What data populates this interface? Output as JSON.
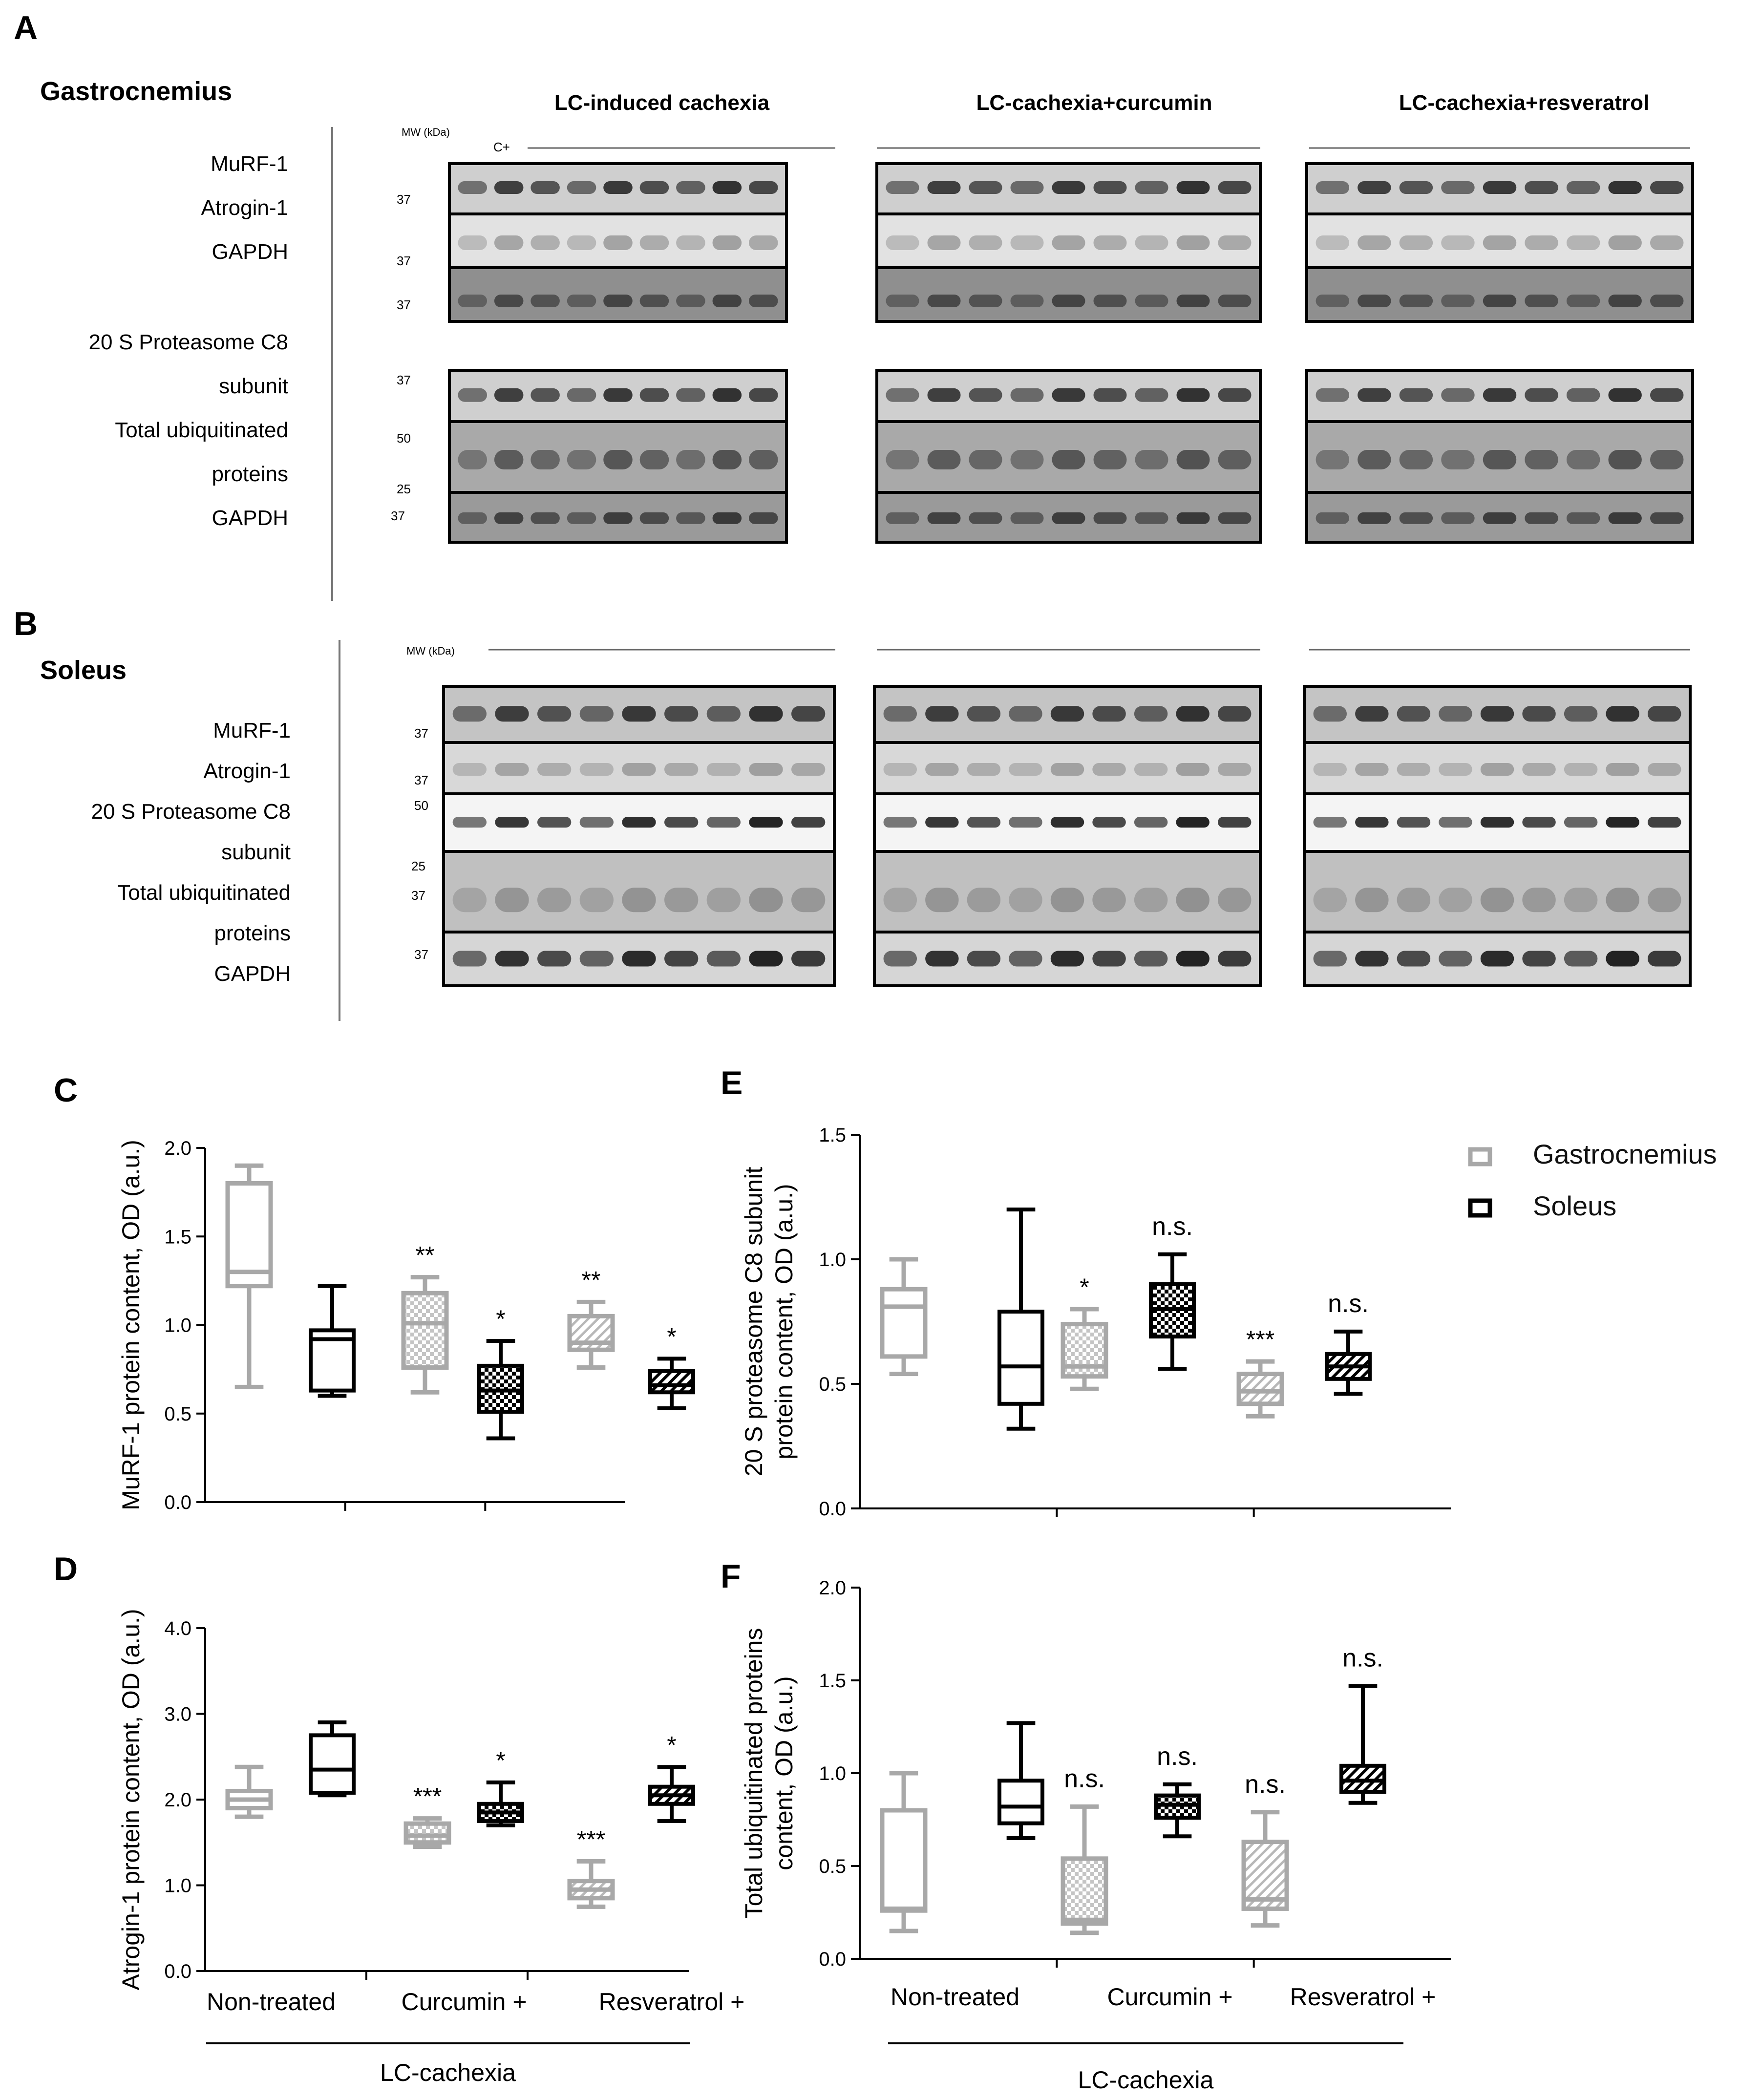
{
  "panel_letters": [
    "A",
    "B",
    "C",
    "D",
    "E",
    "F"
  ],
  "section_a": {
    "title": "Gastrocnemius",
    "group_titles": [
      "LC-induced cachexia",
      "LC-cachexia+curcumin",
      "LC-cachexia+resveratrol"
    ],
    "mw_label": "MW (kDa)",
    "control_label": "C+",
    "row_labels": [
      "MuRF-1",
      "Atrogin-1",
      "GAPDH",
      "20 S Proteasome C8",
      "subunit",
      "Total ubiquitinated",
      "proteins",
      "GAPDH"
    ],
    "mw_markers": [
      "37",
      "37",
      "37",
      "37",
      "50",
      "25",
      "37"
    ]
  },
  "section_b": {
    "title": "Soleus",
    "mw_label": "MW (kDa)",
    "row_labels": [
      "MuRF-1",
      "Atrogin-1",
      "20 S Proteasome C8",
      "subunit",
      "Total ubiquitinated",
      "proteins",
      "GAPDH"
    ],
    "mw_markers": [
      "37",
      "37",
      "50",
      "25",
      "37",
      "37"
    ]
  },
  "legend": {
    "items": [
      "Gastrocnemius",
      "Soleus"
    ],
    "placement": "top-right of panel E"
  },
  "colors": {
    "gastrocnemius": "#a8a8a8",
    "soleus": "#000000",
    "axis": "#000000"
  },
  "chart_data": [
    {
      "panel": "C",
      "type": "box",
      "ylabel": "MuRF-1 protein content, OD (a.u.)",
      "ylim": [
        0,
        2.0
      ],
      "yticks": [
        "0.0",
        "0.5",
        "1.0",
        "1.5",
        "2.0"
      ],
      "categories": [
        "Non-treated",
        "Curcumin +",
        "Resveratrol +"
      ],
      "group_label": "LC-cachexia",
      "series": [
        {
          "name": "Gastrocnemius",
          "boxes": [
            {
              "min": 0.65,
              "q1": 1.22,
              "median": 1.3,
              "q3": 1.8,
              "max": 1.9,
              "pattern": "none",
              "sig": ""
            },
            {
              "min": 0.62,
              "q1": 0.76,
              "median": 1.01,
              "q3": 1.18,
              "max": 1.27,
              "pattern": "check",
              "sig": "**"
            },
            {
              "min": 0.76,
              "q1": 0.86,
              "median": 0.9,
              "q3": 1.05,
              "max": 1.13,
              "pattern": "hatch",
              "sig": "**"
            }
          ]
        },
        {
          "name": "Soleus",
          "boxes": [
            {
              "min": 0.6,
              "q1": 0.63,
              "median": 0.92,
              "q3": 0.97,
              "max": 1.22,
              "pattern": "none",
              "sig": ""
            },
            {
              "min": 0.36,
              "q1": 0.51,
              "median": 0.63,
              "q3": 0.77,
              "max": 0.91,
              "pattern": "check",
              "sig": "*"
            },
            {
              "min": 0.53,
              "q1": 0.62,
              "median": 0.66,
              "q3": 0.74,
              "max": 0.81,
              "pattern": "hatch",
              "sig": "*"
            }
          ]
        }
      ]
    },
    {
      "panel": "D",
      "type": "box",
      "ylabel": "Atrogin-1 protein content, OD (a.u.)",
      "ylim": [
        0,
        4.0
      ],
      "yticks": [
        "0.0",
        "1.0",
        "2.0",
        "3.0",
        "4.0"
      ],
      "categories": [
        "Non-treated",
        "Curcumin +",
        "Resveratrol +"
      ],
      "group_label": "LC-cachexia",
      "series": [
        {
          "name": "Gastrocnemius",
          "boxes": [
            {
              "min": 1.8,
              "q1": 1.9,
              "median": 2.0,
              "q3": 2.1,
              "max": 2.38,
              "pattern": "none",
              "sig": ""
            },
            {
              "min": 1.45,
              "q1": 1.5,
              "median": 1.58,
              "q3": 1.72,
              "max": 1.78,
              "pattern": "check",
              "sig": "***"
            },
            {
              "min": 0.75,
              "q1": 0.85,
              "median": 0.95,
              "q3": 1.05,
              "max": 1.28,
              "pattern": "hatch",
              "sig": "***"
            }
          ]
        },
        {
          "name": "Soleus",
          "boxes": [
            {
              "min": 2.05,
              "q1": 2.08,
              "median": 2.35,
              "q3": 2.75,
              "max": 2.9,
              "pattern": "none",
              "sig": ""
            },
            {
              "min": 1.7,
              "q1": 1.75,
              "median": 1.85,
              "q3": 1.95,
              "max": 2.2,
              "pattern": "check",
              "sig": "*"
            },
            {
              "min": 1.75,
              "q1": 1.95,
              "median": 2.05,
              "q3": 2.15,
              "max": 2.38,
              "pattern": "hatch",
              "sig": "*"
            }
          ]
        }
      ]
    },
    {
      "panel": "E",
      "type": "box",
      "ylabel_lines": [
        "20 S proteasome C8 subunit",
        "protein content, OD (a.u.)"
      ],
      "ylim": [
        0,
        1.5
      ],
      "yticks": [
        "0.0",
        "0.5",
        "1.0",
        "1.5"
      ],
      "categories": [
        "Non-treated",
        "Curcumin +",
        "Resveratrol +"
      ],
      "group_label": "LC-cachexia",
      "series": [
        {
          "name": "Gastrocnemius",
          "boxes": [
            {
              "min": 0.54,
              "q1": 0.61,
              "median": 0.81,
              "q3": 0.88,
              "max": 1.0,
              "pattern": "none",
              "sig": ""
            },
            {
              "min": 0.48,
              "q1": 0.53,
              "median": 0.57,
              "q3": 0.74,
              "max": 0.8,
              "pattern": "check",
              "sig": "*"
            },
            {
              "min": 0.37,
              "q1": 0.42,
              "median": 0.47,
              "q3": 0.54,
              "max": 0.59,
              "pattern": "hatch",
              "sig": "***"
            }
          ]
        },
        {
          "name": "Soleus",
          "boxes": [
            {
              "min": 0.32,
              "q1": 0.42,
              "median": 0.57,
              "q3": 0.79,
              "max": 1.2,
              "pattern": "none",
              "sig": ""
            },
            {
              "min": 0.56,
              "q1": 0.69,
              "median": 0.8,
              "q3": 0.9,
              "max": 1.02,
              "pattern": "check",
              "sig": "n.s."
            },
            {
              "min": 0.46,
              "q1": 0.52,
              "median": 0.57,
              "q3": 0.62,
              "max": 0.71,
              "pattern": "hatch",
              "sig": "n.s."
            }
          ]
        }
      ]
    },
    {
      "panel": "F",
      "type": "box",
      "ylabel_lines": [
        "Total ubiquitinated proteins",
        "content, OD (a.u.)"
      ],
      "ylim": [
        0,
        2.0
      ],
      "yticks": [
        "0.0",
        "0.5",
        "1.0",
        "1.5",
        "2.0"
      ],
      "categories": [
        "Non-treated",
        "Curcumin +",
        "Resveratrol +"
      ],
      "group_label": "LC-cachexia",
      "series": [
        {
          "name": "Gastrocnemius",
          "boxes": [
            {
              "min": 0.15,
              "q1": 0.26,
              "median": 0.27,
              "q3": 0.8,
              "max": 1.0,
              "pattern": "none",
              "sig": ""
            },
            {
              "min": 0.14,
              "q1": 0.19,
              "median": 0.21,
              "q3": 0.54,
              "max": 0.82,
              "pattern": "check",
              "sig": "n.s."
            },
            {
              "min": 0.18,
              "q1": 0.27,
              "median": 0.32,
              "q3": 0.63,
              "max": 0.79,
              "pattern": "hatch",
              "sig": "n.s."
            }
          ]
        },
        {
          "name": "Soleus",
          "boxes": [
            {
              "min": 0.65,
              "q1": 0.73,
              "median": 0.82,
              "q3": 0.96,
              "max": 1.27,
              "pattern": "none",
              "sig": ""
            },
            {
              "min": 0.66,
              "q1": 0.76,
              "median": 0.83,
              "q3": 0.88,
              "max": 0.94,
              "pattern": "check",
              "sig": "n.s."
            },
            {
              "min": 0.84,
              "q1": 0.9,
              "median": 0.96,
              "q3": 1.04,
              "max": 1.47,
              "pattern": "hatch",
              "sig": "n.s."
            }
          ]
        }
      ]
    }
  ]
}
